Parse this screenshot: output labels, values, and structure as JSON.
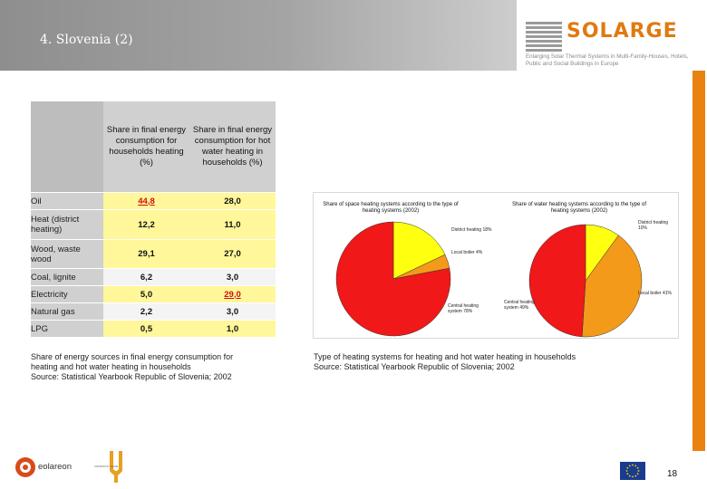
{
  "slide": {
    "title": "4. Slovenia (2)",
    "page_number": "18"
  },
  "logo": {
    "name": "SOLARGE",
    "tagline": "Enlarging Solar Thermal Systems in Multi-Family-Houses, Hotels, Public and Social Buildings in Europe"
  },
  "table": {
    "headers": [
      "Share in final energy consumption for households heating (%)",
      "Share in final energy consumption for hot water heating in households (%)"
    ],
    "rows": [
      {
        "label": "Oil",
        "heating": "44,8",
        "hot_water": "28,0"
      },
      {
        "label": "Heat (district heating)",
        "heating": "12,2",
        "hot_water": "11,0"
      },
      {
        "label": "Wood, waste wood",
        "heating": "29,1",
        "hot_water": "27,0"
      },
      {
        "label": "Coal, lignite",
        "heating": "6,2",
        "hot_water": "3,0"
      },
      {
        "label": "Electricity",
        "heating": "5,0",
        "hot_water": "29,0"
      },
      {
        "label": "Natural gas",
        "heating": "2,2",
        "hot_water": "3,0"
      },
      {
        "label": "LPG",
        "heating": "0,5",
        "hot_water": "1,0"
      }
    ],
    "caption": [
      "Share of energy sources in final energy consumption for",
      "heating and hot water heating in households",
      "Source: Statistical Yearbook Republic of Slovenia; 2002"
    ]
  },
  "charts_caption": [
    "Type of heating systems for heating and hot water heating in households",
    "Source: Statistical Yearbook Republic of Slovenia; 2002"
  ],
  "chart_data": [
    {
      "type": "pie",
      "title": "Share of space heating systems according to the type of heating systems (2002)",
      "categories": [
        "District heating",
        "Local boiler",
        "Central heating system"
      ],
      "values": [
        18,
        4,
        78
      ],
      "labels": [
        "District heating 18%",
        "Local boiler 4%",
        "Central heating system 78%"
      ],
      "colors": [
        "#ffff10",
        "#f39a1a",
        "#f01818"
      ]
    },
    {
      "type": "pie",
      "title": "Share of water heating systems according to the type of heating systems (2002)",
      "categories": [
        "District heating",
        "Local boiler",
        "Central heating system"
      ],
      "values": [
        10,
        41,
        49
      ],
      "labels": [
        "District heating 10%",
        "Local boiler 41%",
        "Central heating system 49%"
      ],
      "colors": [
        "#ffff10",
        "#f39a1a",
        "#f01818"
      ]
    }
  ],
  "footer": {
    "eolareon": "eolareon",
    "uni_label": "UNIVERSITÄT KASSEL"
  }
}
